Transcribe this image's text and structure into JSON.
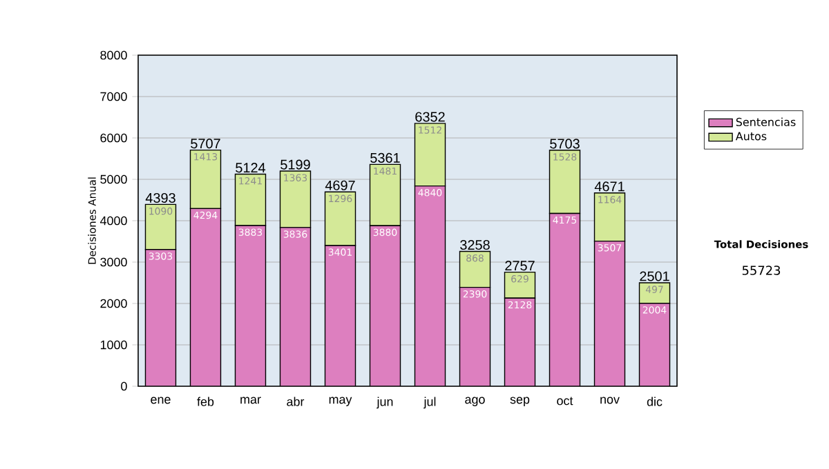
{
  "chart_data": {
    "type": "bar",
    "stacked": true,
    "ylabel": "Decisiones Anual",
    "categories": [
      "ene",
      "feb",
      "mar",
      "abr",
      "may",
      "jun",
      "jul",
      "ago",
      "sep",
      "oct",
      "nov",
      "dic"
    ],
    "series": [
      {
        "name": "Sentencias",
        "color": "#dd7fbf",
        "values": [
          3303,
          4294,
          3883,
          3836,
          3401,
          3880,
          4840,
          2390,
          2128,
          4175,
          3507,
          2004
        ]
      },
      {
        "name": "Autos",
        "color": "#d4e998",
        "values": [
          1090,
          1413,
          1241,
          1363,
          1296,
          1481,
          1512,
          868,
          629,
          1528,
          1164,
          497
        ]
      }
    ],
    "totals": [
      "4393",
      "5707",
      "5124",
      "5199",
      "4697",
      "5361",
      "6352",
      "3258",
      "2757",
      "5703",
      "4671",
      "2501"
    ],
    "data_labels": true,
    "ylim": [
      0,
      8000
    ],
    "yticks": [
      0,
      1000,
      2000,
      3000,
      4000,
      5000,
      6000,
      7000,
      8000
    ],
    "grid": "y",
    "legend": "right",
    "annotations": [
      "Total Decisiones",
      "55723"
    ]
  }
}
